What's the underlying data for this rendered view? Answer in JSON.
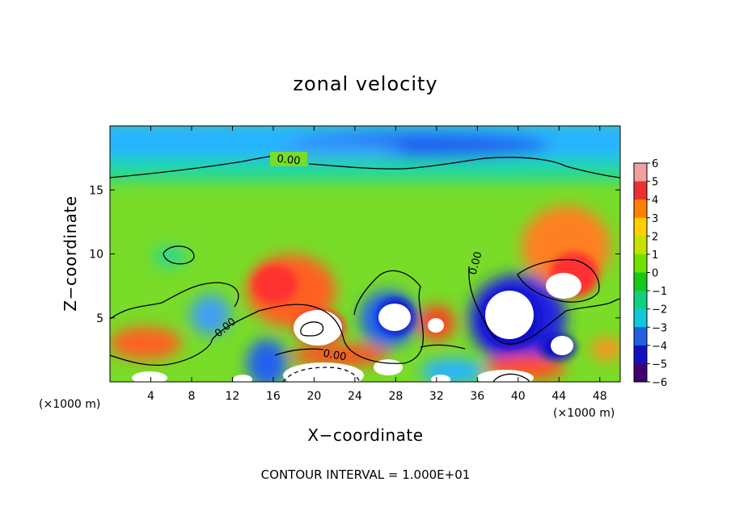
{
  "chart_data": {
    "type": "heatmap",
    "title": "zonal velocity",
    "xlabel": "X−coordinate",
    "ylabel": "Z−coordinate",
    "x_unit": "(×1000 m)",
    "z_unit": "(×1000 m)",
    "xlim": [
      0,
      50
    ],
    "ylim": [
      0,
      20
    ],
    "x_ticks": [
      4,
      8,
      12,
      16,
      20,
      24,
      28,
      32,
      36,
      40,
      44,
      48
    ],
    "y_ticks": [
      5,
      10,
      15
    ],
    "colorbar": {
      "ticks": [
        "6",
        "5",
        "4",
        "3",
        "2",
        "1",
        "0",
        "−1",
        "−2",
        "−3",
        "−4",
        "−5",
        "−6"
      ],
      "colors": [
        "#f0a0a0",
        "#ee3030",
        "#ff8000",
        "#ffd000",
        "#c8e000",
        "#70e000",
        "#18c818",
        "#10d080",
        "#10c8d8",
        "#2060e0",
        "#1010c0",
        "#400070"
      ]
    },
    "zero_contour_labels": [
      "0.00",
      "0.00",
      "0.00",
      "0.00"
    ],
    "footer": "CONTOUR INTERVAL = 1.000E+01"
  }
}
